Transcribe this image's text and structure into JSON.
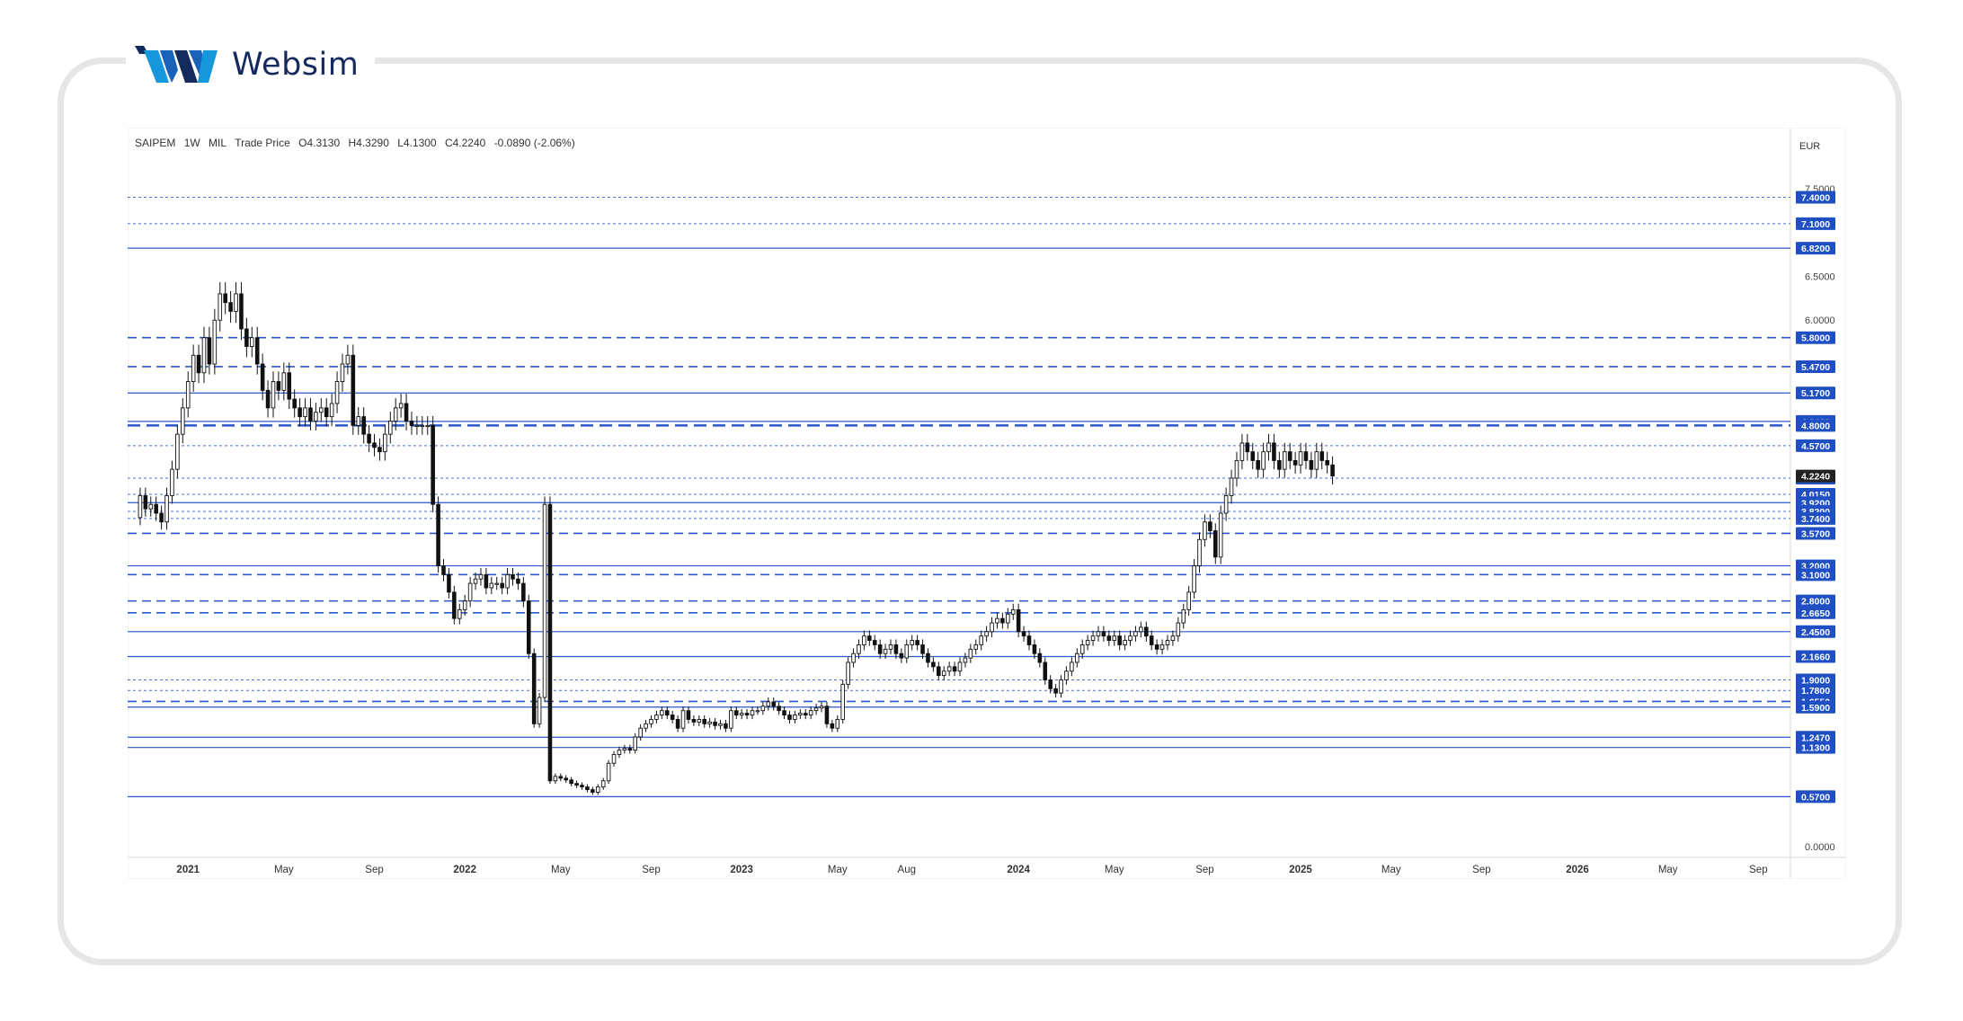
{
  "brand": {
    "name": "Websim"
  },
  "chart_data": {
    "type": "candlestick",
    "symbol": "SAIPEM",
    "interval": "1W",
    "exchange": "MIL",
    "price_type": "Trade Price",
    "ohlc": {
      "open": "O4.3130",
      "high": "H4.3290",
      "low": "L4.1300",
      "close": "C4.2240",
      "change": "-0.0890 (-2.06%)"
    },
    "currency": "EUR",
    "ylim": [
      0,
      7.6
    ],
    "y_ticks": [
      "7.5000",
      "6.5000",
      "6.0000",
      "0.0000"
    ],
    "level_labels": [
      {
        "value": 7.4,
        "text": "7.4000",
        "style": "dotted"
      },
      {
        "value": 7.1,
        "text": "7.1000",
        "style": "dotted"
      },
      {
        "value": 6.82,
        "text": "6.8200",
        "style": "solid"
      },
      {
        "value": 5.8,
        "text": "5.8000",
        "style": "dashed"
      },
      {
        "value": 5.47,
        "text": "5.4700",
        "style": "dashed"
      },
      {
        "value": 5.17,
        "text": "5.1700",
        "style": "solid"
      },
      {
        "value": 4.846,
        "text": "4.8460",
        "style": "solid"
      },
      {
        "value": 4.8,
        "text": "4.8000",
        "style": "dashed-thick"
      },
      {
        "value": 4.57,
        "text": "4.5700",
        "style": "dotted"
      },
      {
        "value": 4.2,
        "text": "4.2000",
        "style": "dotted"
      },
      {
        "value": 4.015,
        "text": "4.0150",
        "style": "dotted"
      },
      {
        "value": 3.92,
        "text": "3.9200",
        "style": "solid"
      },
      {
        "value": 3.82,
        "text": "3.8200",
        "style": "dotted"
      },
      {
        "value": 3.74,
        "text": "3.7400",
        "style": "dotted"
      },
      {
        "value": 3.57,
        "text": "3.5700",
        "style": "dashed"
      },
      {
        "value": 3.2,
        "text": "3.2000",
        "style": "solid"
      },
      {
        "value": 3.1,
        "text": "3.1000",
        "style": "dashed"
      },
      {
        "value": 2.8,
        "text": "2.8000",
        "style": "dashed"
      },
      {
        "value": 2.665,
        "text": "2.6650",
        "style": "dashed"
      },
      {
        "value": 2.45,
        "text": "2.4500",
        "style": "solid"
      },
      {
        "value": 2.166,
        "text": "2.1660",
        "style": "solid"
      },
      {
        "value": 1.9,
        "text": "1.9000",
        "style": "dotted"
      },
      {
        "value": 1.78,
        "text": "1.7800",
        "style": "dotted"
      },
      {
        "value": 1.655,
        "text": "1.6550",
        "style": "dashed"
      },
      {
        "value": 1.59,
        "text": "1.5900",
        "style": "solid"
      },
      {
        "value": 1.247,
        "text": "1.2470",
        "style": "solid"
      },
      {
        "value": 1.13,
        "text": "1.1300",
        "style": "solid"
      },
      {
        "value": 0.57,
        "text": "0.5700",
        "style": "solid"
      }
    ],
    "last_price": {
      "value": 4.224,
      "text": "4.2240"
    },
    "x_ticks": [
      {
        "label": "2021",
        "w": 10,
        "bold": true
      },
      {
        "label": "May",
        "w": 28
      },
      {
        "label": "Sep",
        "w": 45
      },
      {
        "label": "2022",
        "w": 62,
        "bold": true
      },
      {
        "label": "May",
        "w": 80
      },
      {
        "label": "Sep",
        "w": 97
      },
      {
        "label": "2023",
        "w": 114,
        "bold": true
      },
      {
        "label": "May",
        "w": 132
      },
      {
        "label": "Aug",
        "w": 145
      },
      {
        "label": "2024",
        "w": 166,
        "bold": true
      },
      {
        "label": "May",
        "w": 184
      },
      {
        "label": "Sep",
        "w": 201
      },
      {
        "label": "2025",
        "w": 219,
        "bold": true
      },
      {
        "label": "May",
        "w": 236
      },
      {
        "label": "Sep",
        "w": 253
      },
      {
        "label": "2026",
        "w": 271,
        "bold": true
      },
      {
        "label": "May",
        "w": 288
      },
      {
        "label": "Sep",
        "w": 305
      }
    ],
    "price_path": [
      [
        0,
        3.75
      ],
      [
        1,
        4.0
      ],
      [
        2,
        3.85
      ],
      [
        3,
        3.9
      ],
      [
        4,
        3.8
      ],
      [
        5,
        3.7
      ],
      [
        6,
        4.0
      ],
      [
        7,
        4.3
      ],
      [
        8,
        4.7
      ],
      [
        9,
        5.0
      ],
      [
        10,
        5.3
      ],
      [
        11,
        5.6
      ],
      [
        12,
        5.4
      ],
      [
        13,
        5.8
      ],
      [
        14,
        5.5
      ],
      [
        15,
        6.0
      ],
      [
        16,
        6.3
      ],
      [
        17,
        6.2
      ],
      [
        18,
        6.1
      ],
      [
        19,
        6.3
      ],
      [
        20,
        5.9
      ],
      [
        21,
        5.7
      ],
      [
        22,
        5.8
      ],
      [
        23,
        5.5
      ],
      [
        24,
        5.2
      ],
      [
        25,
        5.0
      ],
      [
        26,
        5.3
      ],
      [
        27,
        5.2
      ],
      [
        28,
        5.4
      ],
      [
        29,
        5.1
      ],
      [
        30,
        5.0
      ],
      [
        31,
        4.9
      ],
      [
        32,
        5.0
      ],
      [
        33,
        4.85
      ],
      [
        34,
        4.95
      ],
      [
        35,
        5.0
      ],
      [
        36,
        4.9
      ],
      [
        37,
        5.05
      ],
      [
        38,
        5.3
      ],
      [
        39,
        5.5
      ],
      [
        40,
        5.6
      ],
      [
        41,
        4.8
      ],
      [
        42,
        4.9
      ],
      [
        43,
        4.7
      ],
      [
        44,
        4.6
      ],
      [
        45,
        4.55
      ],
      [
        46,
        4.5
      ],
      [
        47,
        4.7
      ],
      [
        48,
        4.85
      ],
      [
        49,
        5.0
      ],
      [
        50,
        5.05
      ],
      [
        51,
        4.85
      ],
      [
        52,
        4.8
      ],
      [
        53,
        4.8
      ],
      [
        54,
        4.8
      ],
      [
        55,
        4.8
      ],
      [
        56,
        3.9
      ],
      [
        57,
        3.2
      ],
      [
        58,
        3.1
      ],
      [
        59,
        2.9
      ],
      [
        60,
        2.6
      ],
      [
        61,
        2.7
      ],
      [
        62,
        2.8
      ],
      [
        63,
        3.0
      ],
      [
        64,
        3.05
      ],
      [
        65,
        3.1
      ],
      [
        66,
        2.95
      ],
      [
        67,
        3.0
      ],
      [
        68,
        3.0
      ],
      [
        69,
        2.95
      ],
      [
        70,
        3.1
      ],
      [
        71,
        3.05
      ],
      [
        72,
        3.0
      ],
      [
        73,
        2.8
      ],
      [
        74,
        2.2
      ],
      [
        75,
        1.4
      ],
      [
        76,
        1.7
      ],
      [
        77,
        3.9
      ],
      [
        78,
        0.75
      ],
      [
        79,
        0.8
      ],
      [
        80,
        0.78
      ],
      [
        81,
        0.76
      ],
      [
        82,
        0.72
      ],
      [
        83,
        0.7
      ],
      [
        84,
        0.68
      ],
      [
        85,
        0.65
      ],
      [
        86,
        0.62
      ],
      [
        87,
        0.68
      ],
      [
        88,
        0.75
      ],
      [
        89,
        0.95
      ],
      [
        90,
        1.05
      ],
      [
        91,
        1.1
      ],
      [
        92,
        1.12
      ],
      [
        93,
        1.1
      ],
      [
        94,
        1.25
      ],
      [
        95,
        1.35
      ],
      [
        96,
        1.4
      ],
      [
        97,
        1.45
      ],
      [
        98,
        1.5
      ],
      [
        99,
        1.55
      ],
      [
        100,
        1.5
      ],
      [
        101,
        1.45
      ],
      [
        102,
        1.35
      ],
      [
        103,
        1.55
      ],
      [
        104,
        1.45
      ],
      [
        105,
        1.42
      ],
      [
        106,
        1.45
      ],
      [
        107,
        1.4
      ],
      [
        108,
        1.42
      ],
      [
        109,
        1.38
      ],
      [
        110,
        1.4
      ],
      [
        111,
        1.35
      ],
      [
        112,
        1.55
      ],
      [
        113,
        1.5
      ],
      [
        114,
        1.52
      ],
      [
        115,
        1.5
      ],
      [
        116,
        1.55
      ],
      [
        117,
        1.55
      ],
      [
        118,
        1.6
      ],
      [
        119,
        1.65
      ],
      [
        120,
        1.6
      ],
      [
        121,
        1.55
      ],
      [
        122,
        1.5
      ],
      [
        123,
        1.45
      ],
      [
        124,
        1.5
      ],
      [
        125,
        1.52
      ],
      [
        126,
        1.5
      ],
      [
        127,
        1.55
      ],
      [
        128,
        1.58
      ],
      [
        129,
        1.6
      ],
      [
        130,
        1.4
      ],
      [
        131,
        1.35
      ],
      [
        132,
        1.45
      ],
      [
        133,
        1.85
      ],
      [
        134,
        2.1
      ],
      [
        135,
        2.2
      ],
      [
        136,
        2.3
      ],
      [
        137,
        2.4
      ],
      [
        138,
        2.35
      ],
      [
        139,
        2.3
      ],
      [
        140,
        2.2
      ],
      [
        141,
        2.25
      ],
      [
        142,
        2.3
      ],
      [
        143,
        2.2
      ],
      [
        144,
        2.15
      ],
      [
        145,
        2.3
      ],
      [
        146,
        2.35
      ],
      [
        147,
        2.3
      ],
      [
        148,
        2.2
      ],
      [
        149,
        2.1
      ],
      [
        150,
        2.05
      ],
      [
        151,
        1.95
      ],
      [
        152,
        2.0
      ],
      [
        153,
        2.05
      ],
      [
        154,
        2.0
      ],
      [
        155,
        2.1
      ],
      [
        156,
        2.15
      ],
      [
        157,
        2.25
      ],
      [
        158,
        2.3
      ],
      [
        159,
        2.4
      ],
      [
        160,
        2.45
      ],
      [
        161,
        2.55
      ],
      [
        162,
        2.6
      ],
      [
        163,
        2.55
      ],
      [
        164,
        2.65
      ],
      [
        165,
        2.7
      ],
      [
        166,
        2.45
      ],
      [
        167,
        2.4
      ],
      [
        168,
        2.3
      ],
      [
        169,
        2.2
      ],
      [
        170,
        2.1
      ],
      [
        171,
        1.9
      ],
      [
        172,
        1.8
      ],
      [
        173,
        1.75
      ],
      [
        174,
        1.9
      ],
      [
        175,
        2.0
      ],
      [
        176,
        2.1
      ],
      [
        177,
        2.2
      ],
      [
        178,
        2.3
      ],
      [
        179,
        2.35
      ],
      [
        180,
        2.4
      ],
      [
        181,
        2.45
      ],
      [
        182,
        2.4
      ],
      [
        183,
        2.35
      ],
      [
        184,
        2.4
      ],
      [
        185,
        2.3
      ],
      [
        186,
        2.35
      ],
      [
        187,
        2.4
      ],
      [
        188,
        2.45
      ],
      [
        189,
        2.5
      ],
      [
        190,
        2.4
      ],
      [
        191,
        2.3
      ],
      [
        192,
        2.25
      ],
      [
        193,
        2.3
      ],
      [
        194,
        2.35
      ],
      [
        195,
        2.4
      ],
      [
        196,
        2.55
      ],
      [
        197,
        2.7
      ],
      [
        198,
        2.9
      ],
      [
        199,
        3.2
      ],
      [
        200,
        3.5
      ],
      [
        201,
        3.7
      ],
      [
        202,
        3.6
      ],
      [
        203,
        3.3
      ],
      [
        204,
        3.8
      ],
      [
        205,
        4.0
      ],
      [
        206,
        4.2
      ],
      [
        207,
        4.4
      ],
      [
        208,
        4.6
      ],
      [
        209,
        4.5
      ],
      [
        210,
        4.4
      ],
      [
        211,
        4.3
      ],
      [
        212,
        4.5
      ],
      [
        213,
        4.6
      ],
      [
        214,
        4.4
      ],
      [
        215,
        4.3
      ],
      [
        216,
        4.5
      ],
      [
        217,
        4.4
      ],
      [
        218,
        4.35
      ],
      [
        219,
        4.5
      ],
      [
        220,
        4.4
      ],
      [
        221,
        4.3
      ],
      [
        222,
        4.5
      ],
      [
        223,
        4.4
      ],
      [
        224,
        4.35
      ],
      [
        225,
        4.224
      ]
    ]
  }
}
